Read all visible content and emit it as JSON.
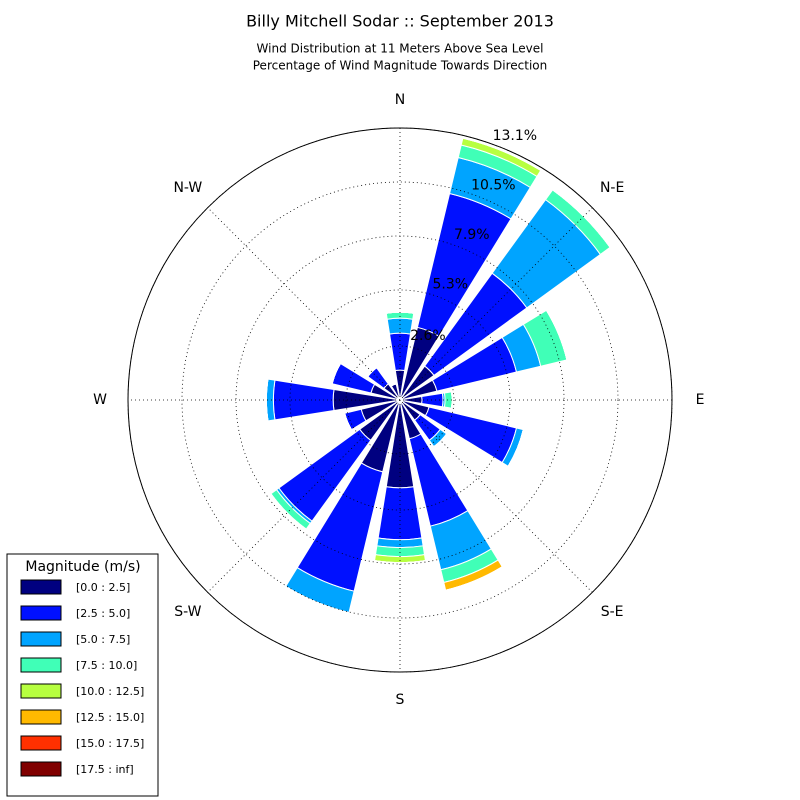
{
  "chart_data": {
    "type": "windrose",
    "title": "Billy Mitchell Sodar :: September 2013",
    "subtitle": [
      "Wind Distribution at 11 Meters Above Sea Level",
      "Percentage of Wind Magnitude Towards Direction"
    ],
    "categories": [
      "N",
      null,
      "N-E",
      null,
      "E",
      null,
      "S-E",
      null,
      "S",
      null,
      "S-W",
      null,
      "W",
      null,
      "N-W",
      null
    ],
    "ylim": [
      0,
      13.1
    ],
    "yticks": [
      {
        "value": 2.6,
        "label": "2.6%"
      },
      {
        "value": 5.3,
        "label": "5.3%"
      },
      {
        "value": 7.9,
        "label": "7.9%"
      },
      {
        "value": 10.5,
        "label": "10.5%"
      },
      {
        "value": 13.1,
        "label": "13.1%"
      }
    ],
    "grid": true,
    "legend_title": "Magnitude (m/s)",
    "legend": "lower left",
    "series": [
      {
        "name": "[0.0 : 2.5]",
        "color": "#000080",
        "values": [
          1.44,
          3.6,
          2.02,
          1.83,
          1.06,
          1.44,
          1.2,
          1.92,
          4.23,
          3.56,
          2.4,
          1.92,
          3.22,
          1.44,
          0.96,
          0.8
        ]
      },
      {
        "name": "[2.5 : 5.0]",
        "color": "#0010ff",
        "values": [
          1.78,
          6.63,
          5.53,
          3.94,
          1.01,
          4.33,
          1.2,
          4.33,
          2.5,
          5.91,
          4.81,
          0.82,
          2.88,
          1.92,
          0.96,
          0
        ]
      },
      {
        "name": "[5.0 : 7.5]",
        "color": "#00a4ff",
        "values": [
          0.72,
          1.78,
          4.38,
          1.2,
          0.1,
          0.34,
          0.38,
          2.16,
          0.38,
          1.06,
          0.14,
          0,
          0.34,
          0,
          0,
          0
        ]
      },
      {
        "name": "[7.5 : 10.0]",
        "color": "#40ffb7",
        "values": [
          0.29,
          0.62,
          0.58,
          1.3,
          0.34,
          0,
          0,
          0.63,
          0.43,
          0,
          0.34,
          0,
          0,
          0,
          0,
          0
        ]
      },
      {
        "name": "[10.0 : 12.5]",
        "color": "#b7ff40",
        "values": [
          0,
          0.34,
          0,
          0,
          0,
          0,
          0,
          0,
          0.29,
          0,
          0,
          0,
          0,
          0,
          0,
          0
        ]
      },
      {
        "name": "[12.5 : 15.0]",
        "color": "#ffb900",
        "values": [
          0,
          0,
          0,
          0,
          0,
          0,
          0,
          0.38,
          0,
          0,
          0,
          0,
          0,
          0,
          0,
          0
        ]
      },
      {
        "name": "[15.0 : 17.5]",
        "color": "#ff3000",
        "values": [
          0,
          0,
          0,
          0,
          0,
          0,
          0,
          0,
          0,
          0,
          0,
          0,
          0,
          0,
          0,
          0
        ]
      },
      {
        "name": "[17.5 : inf]",
        "color": "#800000",
        "values": [
          0,
          0,
          0,
          0,
          0,
          0,
          0,
          0,
          0,
          0,
          0,
          0,
          0,
          0,
          0,
          0
        ]
      }
    ]
  }
}
